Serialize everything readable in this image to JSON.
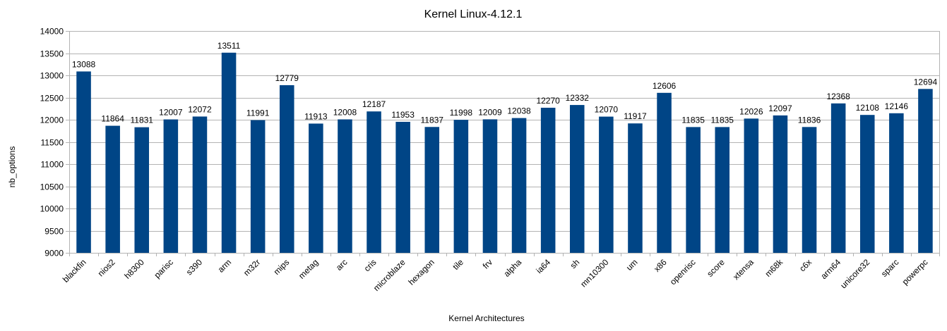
{
  "chart_data": {
    "type": "bar",
    "title": "Kernel Linux-4.12.1",
    "xlabel": "Kernel Architectures",
    "ylabel": "nb_options",
    "ylim": [
      9000,
      14000
    ],
    "yticks": [
      9000,
      9500,
      10000,
      10500,
      11000,
      11500,
      12000,
      12500,
      13000,
      13500,
      14000
    ],
    "grid": true,
    "bar_color": "#004586",
    "categories": [
      "blackfin",
      "nios2",
      "h8300",
      "parisc",
      "s390",
      "arm",
      "m32r",
      "mips",
      "metag",
      "arc",
      "cris",
      "microblaze",
      "hexagon",
      "tile",
      "frv",
      "alpha",
      "ia64",
      "sh",
      "mn10300",
      "um",
      "x86",
      "openrisc",
      "score",
      "xtensa",
      "m68k",
      "c6x",
      "arm64",
      "unicore32",
      "sparc",
      "powerpc"
    ],
    "values": [
      13088,
      11864,
      11831,
      12007,
      12072,
      13511,
      11991,
      12779,
      11913,
      12008,
      12187,
      11953,
      11837,
      11998,
      12009,
      12038,
      12270,
      12332,
      12070,
      11917,
      12606,
      11835,
      11835,
      12026,
      12097,
      11836,
      12368,
      12108,
      12146,
      12694
    ]
  }
}
